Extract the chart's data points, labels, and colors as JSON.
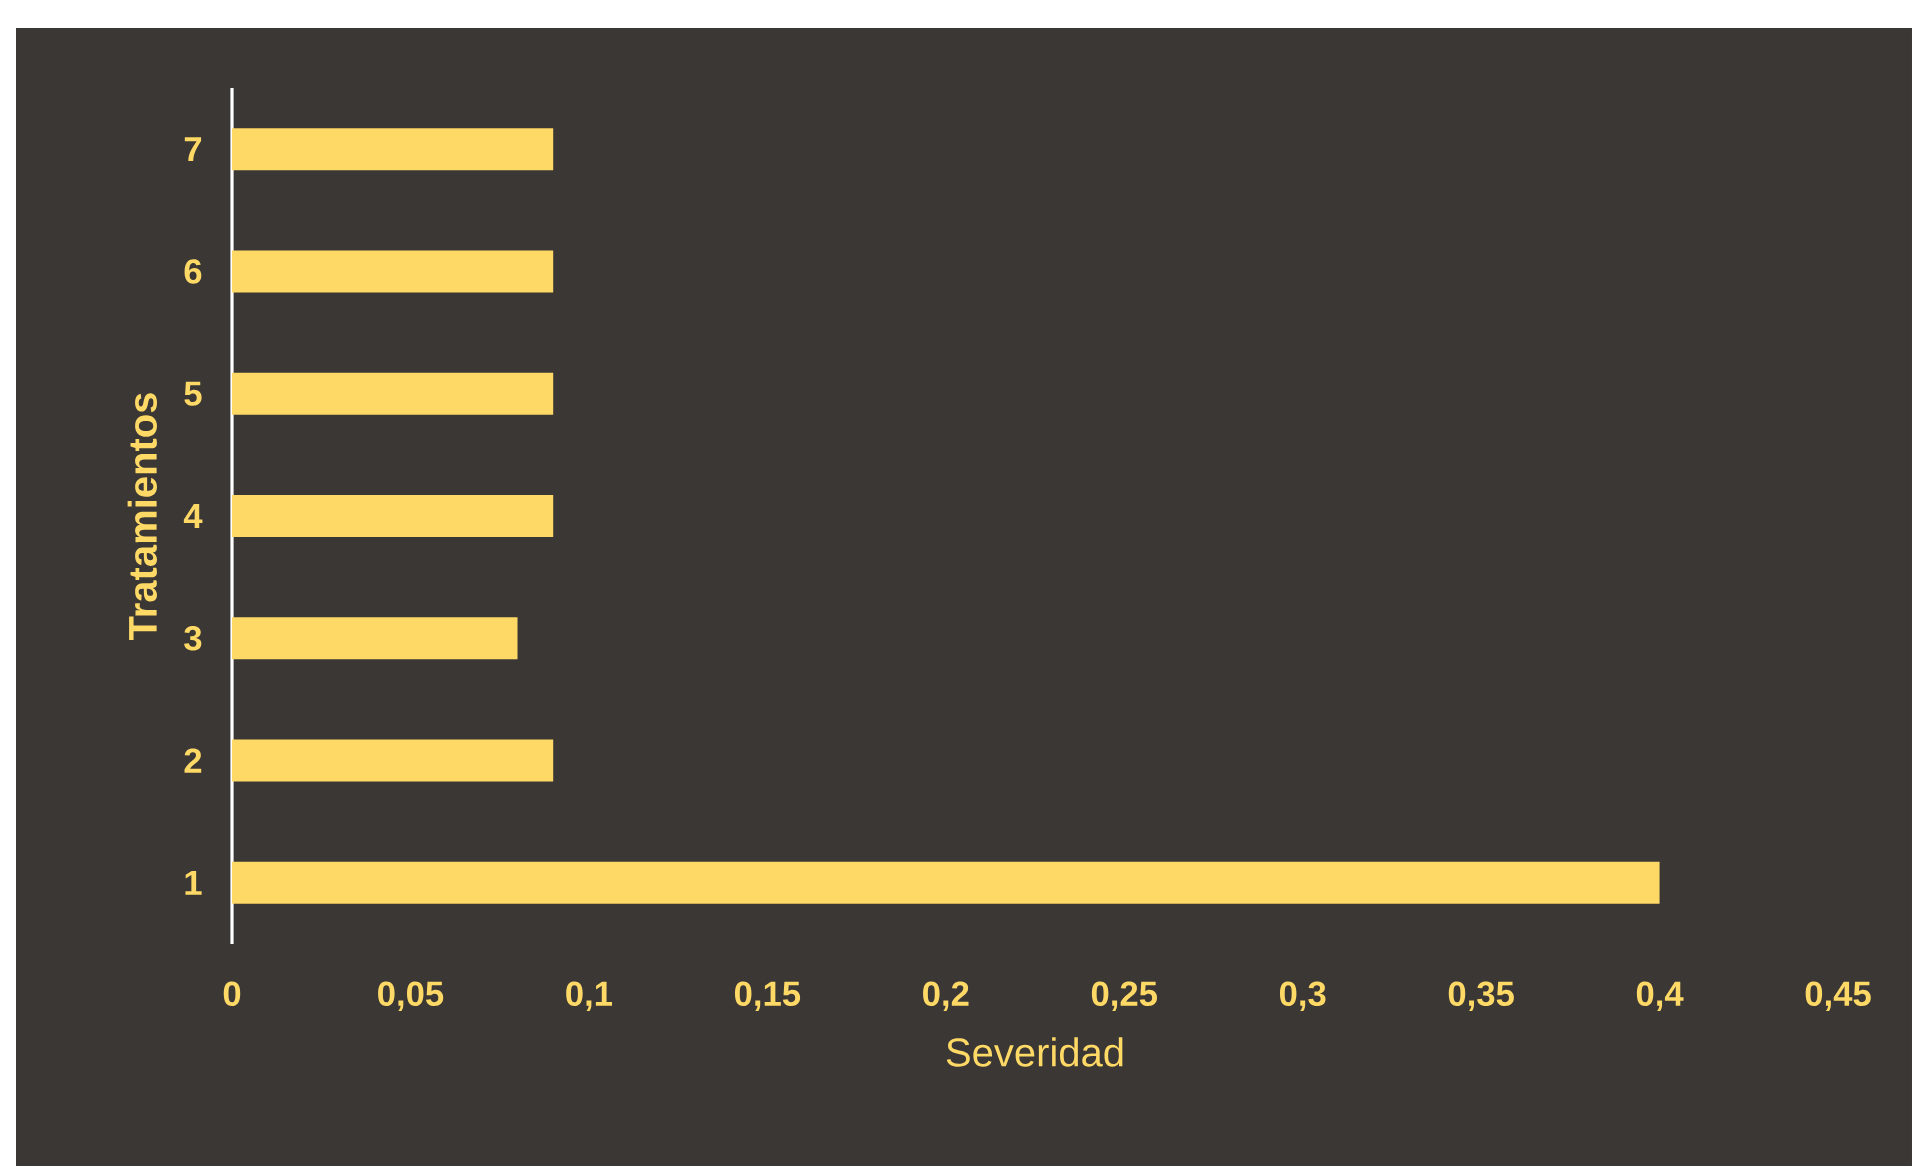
{
  "chart_data": {
    "type": "bar",
    "orientation": "horizontal",
    "xlabel": "Severidad",
    "ylabel": "Tratamientos",
    "categories": [
      "7",
      "6",
      "5",
      "4",
      "3",
      "2",
      "1"
    ],
    "values": [
      0.09,
      0.09,
      0.09,
      0.09,
      0.08,
      0.09,
      0.4
    ],
    "color": "#ffd966",
    "xlim": [
      0,
      0.45
    ],
    "xticks": [
      0,
      {
        "value": 0.05,
        "label": "0,05"
      },
      {
        "value": 0.1,
        "label": "0,1"
      },
      {
        "value": 0.15,
        "label": "0,15"
      },
      {
        "value": 0.2,
        "label": "0,2"
      },
      {
        "value": 0.25,
        "label": "0,25"
      },
      {
        "value": 0.3,
        "label": "0,3"
      },
      {
        "value": 0.35,
        "label": "0,35"
      },
      {
        "value": 0.4,
        "label": "0,4"
      },
      {
        "value": 0.45,
        "label": "0,45"
      }
    ],
    "grid": false
  }
}
